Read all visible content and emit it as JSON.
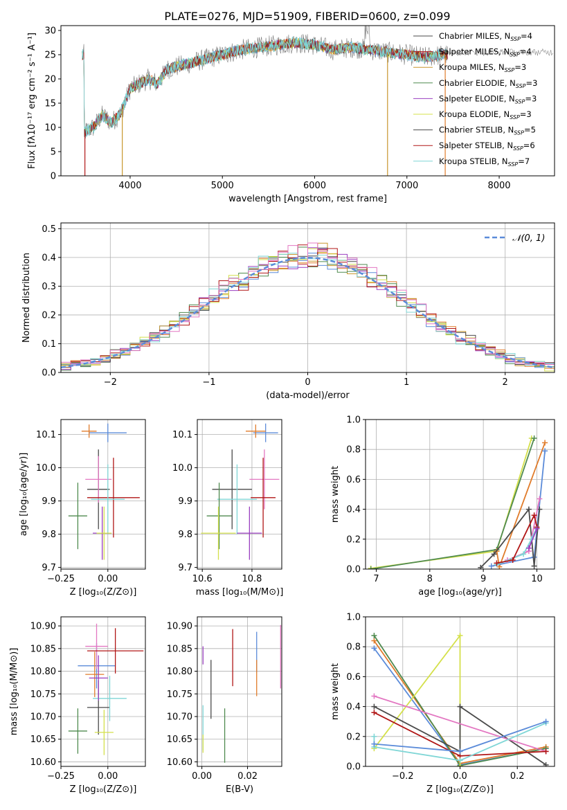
{
  "figure_title": "PLATE=0276, MJD=51909, FIBERID=0600, z=0.099",
  "colors": {
    "chabrier_miles": "#5b8bd9",
    "salpeter_miles": "#e07b2a",
    "kroupa_miles": "#c8962c",
    "chabrier_elodie": "#4f8a4f",
    "salpeter_elodie": "#9a3fc0",
    "kroupa_elodie": "#d4e04a",
    "chabrier_stelib": "#4a4a4a",
    "salpeter_stelib": "#b01515",
    "kroupa_stelib": "#7fd6d6",
    "pink": "#e377c2",
    "gauss": "#5b8bd9"
  },
  "chart_data": [
    {
      "id": "spectrum",
      "type": "line",
      "title": "PLATE=0276, MJD=51909, FIBERID=0600, z=0.099",
      "xlabel": "wavelength [Angstrom, rest frame]",
      "ylabel": "Flux [fλ10⁻¹⁷ erg cm⁻² s⁻¹ A⁻¹]",
      "xlim": [
        3250,
        8600
      ],
      "ylim": [
        0,
        31
      ],
      "xticks": [
        4000,
        5000,
        6000,
        7000,
        8000
      ],
      "yticks": [
        0,
        5,
        10,
        15,
        20,
        25,
        30
      ],
      "grid": false,
      "legend_position": "upper right",
      "legend": [
        {
          "label": "Chabrier MILES, N",
          "sub": "SSP",
          "val": "=4",
          "color": "#4a4a4a"
        },
        {
          "label": "Salpeter MILES, N",
          "sub": "SSP",
          "val": "=4",
          "color": "#b01515"
        },
        {
          "label": "Kroupa MILES, N",
          "sub": "SSP",
          "val": "=3",
          "color": "#c8962c"
        },
        {
          "label": "Chabrier ELODIE, N",
          "sub": "SSP",
          "val": "=3",
          "color": "#4f8a4f"
        },
        {
          "label": "Salpeter ELODIE, N",
          "sub": "SSP",
          "val": "=3",
          "color": "#9a3fc0"
        },
        {
          "label": "Kroupa ELODIE, N",
          "sub": "SSP",
          "val": "=3",
          "color": "#d4e04a"
        },
        {
          "label": "Chabrier STELIB, N",
          "sub": "SSP",
          "val": "=5",
          "color": "#4a4a4a"
        },
        {
          "label": "Salpeter STELIB, N",
          "sub": "SSP",
          "val": "=6",
          "color": "#b01515"
        },
        {
          "label": "Kroupa STELIB, N",
          "sub": "SSP",
          "val": "=7",
          "color": "#7fd6d6"
        }
      ],
      "continuum": {
        "x": [
          3500,
          3600,
          3700,
          3800,
          3900,
          4000,
          4100,
          4200,
          4300,
          4400,
          4600,
          4800,
          5000,
          5200,
          5400,
          5600,
          5800,
          6000,
          6200,
          6400,
          6600,
          6800,
          7000,
          7200,
          7400
        ],
        "y": [
          9,
          10,
          12.5,
          11,
          13,
          18,
          19,
          20,
          19,
          22,
          23,
          24,
          25,
          26,
          26.5,
          27,
          27.5,
          27,
          26,
          26.5,
          26,
          25.5,
          25,
          24.5,
          25
        ]
      },
      "spikes": [
        {
          "x": 3510,
          "color": "#b01515"
        },
        {
          "x": 3915,
          "color": "#c8962c"
        },
        {
          "x": 6790,
          "color": "#c8962c"
        },
        {
          "x": 7415,
          "color": "#e07b2a"
        }
      ]
    },
    {
      "id": "residuals",
      "type": "area",
      "xlabel": "(data-model)/error",
      "ylabel": "Normed distribution",
      "xlim": [
        -2.5,
        2.5
      ],
      "ylim": [
        0,
        0.52
      ],
      "xticks": [
        -2,
        -1,
        0,
        1,
        2
      ],
      "yticks": [
        0.0,
        0.1,
        0.2,
        0.3,
        0.4,
        0.5
      ],
      "grid": true,
      "legend": [
        "𝒩(0, 1)"
      ],
      "legend_position": "upper right",
      "bin_width": 0.1
    },
    {
      "id": "z_age",
      "type": "scatter",
      "xlabel": "Z [log₁₀(Z/Z⊙)]",
      "ylabel": "age  [log₁₀(age/yr)]",
      "xlim": [
        -0.25,
        0.2
      ],
      "ylim": [
        9.695,
        10.145
      ],
      "xticks": [
        -0.25,
        0.0
      ],
      "yticks": [
        9.7,
        9.8,
        9.9,
        10.0,
        10.1
      ],
      "grid": true,
      "points": [
        {
          "x": 0.0,
          "xerr": 0.1,
          "y": 10.105,
          "yerr": 0.028,
          "color": "#5b8bd9"
        },
        {
          "x": -0.1,
          "xerr": 0.04,
          "y": 10.11,
          "yerr": 0.02,
          "color": "#e07b2a"
        },
        {
          "x": -0.05,
          "xerr": 0.06,
          "y": 9.935,
          "yerr": 0.12,
          "color": "#4a4a4a"
        },
        {
          "x": -0.05,
          "xerr": 0.07,
          "y": 9.965,
          "yerr": 0.07,
          "color": "#e377c2"
        },
        {
          "x": 0.03,
          "xerr": 0.14,
          "y": 9.91,
          "yerr": 0.12,
          "color": "#b01515"
        },
        {
          "x": 0.0,
          "xerr": 0.09,
          "y": 9.905,
          "yerr": 0.105,
          "color": "#7fd6d6"
        },
        {
          "x": -0.16,
          "xerr": 0.05,
          "y": 9.855,
          "yerr": 0.1,
          "color": "#4f8a4f"
        },
        {
          "x": -0.03,
          "xerr": 0.05,
          "y": 9.803,
          "yerr": 0.08,
          "color": "#9a3fc0"
        },
        {
          "x": -0.02,
          "xerr": 0.04,
          "y": 9.803,
          "yerr": 0.08,
          "color": "#d4e04a"
        }
      ]
    },
    {
      "id": "mass_age",
      "type": "scatter",
      "xlabel": "mass [log₁₀(M/M⊙)]",
      "xlim": [
        10.58,
        10.92
      ],
      "ylim": [
        9.695,
        10.145
      ],
      "xticks": [
        10.6,
        10.8
      ],
      "yticks": [
        9.7,
        9.8,
        9.9,
        10.0,
        10.1
      ],
      "grid": true,
      "points": [
        {
          "x": 10.855,
          "xerr": 0.05,
          "y": 10.105,
          "yerr": 0.028,
          "color": "#5b8bd9"
        },
        {
          "x": 10.815,
          "xerr": 0.04,
          "y": 10.11,
          "yerr": 0.02,
          "color": "#e07b2a"
        },
        {
          "x": 10.72,
          "xerr": 0.08,
          "y": 9.935,
          "yerr": 0.12,
          "color": "#4a4a4a"
        },
        {
          "x": 10.85,
          "xerr": 0.06,
          "y": 9.965,
          "yerr": 0.09,
          "color": "#e377c2"
        },
        {
          "x": 10.845,
          "xerr": 0.05,
          "y": 9.91,
          "yerr": 0.12,
          "color": "#b01515"
        },
        {
          "x": 10.74,
          "xerr": 0.08,
          "y": 9.905,
          "yerr": 0.105,
          "color": "#7fd6d6"
        },
        {
          "x": 10.668,
          "xerr": 0.05,
          "y": 9.855,
          "yerr": 0.1,
          "color": "#4f8a4f"
        },
        {
          "x": 10.79,
          "xerr": 0.05,
          "y": 9.803,
          "yerr": 0.08,
          "color": "#9a3fc0"
        },
        {
          "x": 10.665,
          "xerr": 0.07,
          "y": 9.803,
          "yerr": 0.08,
          "color": "#d4e04a"
        }
      ]
    },
    {
      "id": "age_weight",
      "type": "line",
      "xlabel": "age  [log₁₀(age/yr)]",
      "ylabel": "mass weight",
      "xlim": [
        6.8,
        10.33
      ],
      "ylim": [
        0,
        1.0
      ],
      "xticks": [
        7,
        8,
        9,
        10
      ],
      "yticks": [
        0.0,
        0.2,
        0.4,
        0.6,
        0.8,
        1.0
      ],
      "grid": true,
      "series": [
        {
          "color": "#d4e04a",
          "x": [
            6.9,
            9.25,
            9.9
          ],
          "y": [
            0.005,
            0.12,
            0.875
          ]
        },
        {
          "color": "#4f8a4f",
          "x": [
            6.9,
            9.25,
            9.95
          ],
          "y": [
            0.0,
            0.13,
            0.875
          ]
        },
        {
          "color": "#e07b2a",
          "x": [
            9.25,
            9.3,
            10.15
          ],
          "y": [
            0.12,
            0.015,
            0.845
          ]
        },
        {
          "color": "#5b8bd9",
          "x": [
            9.15,
            9.95,
            10.15
          ],
          "y": [
            0.02,
            0.08,
            0.79
          ]
        },
        {
          "color": "#4a4a4a",
          "x": [
            8.95,
            9.2,
            9.85,
            9.95,
            10.05
          ],
          "y": [
            0.01,
            0.1,
            0.4,
            0.02,
            0.4
          ]
        },
        {
          "color": "#e377c2",
          "x": [
            9.45,
            9.85,
            10.05
          ],
          "y": [
            0.06,
            0.12,
            0.47
          ]
        },
        {
          "color": "#7fd6d6",
          "x": [
            9.25,
            9.75,
            9.9,
            10.0
          ],
          "y": [
            0.03,
            0.1,
            0.2,
            0.28
          ]
        },
        {
          "color": "#b01515",
          "x": [
            9.25,
            9.55,
            9.95,
            10.0
          ],
          "y": [
            0.04,
            0.06,
            0.36,
            0.28
          ]
        },
        {
          "color": "#9a3fc0",
          "x": [
            9.85,
            10.0
          ],
          "y": [
            0.14,
            0.27
          ]
        }
      ]
    },
    {
      "id": "z_mass",
      "type": "scatter",
      "xlabel": "Z [log₁₀(Z/Z⊙)]",
      "ylabel": "mass [log₁₀(M/M⊙)]",
      "xlim": [
        -0.25,
        0.2
      ],
      "ylim": [
        10.59,
        10.92
      ],
      "xticks": [
        -0.25,
        0.0
      ],
      "yticks": [
        10.6,
        10.65,
        10.7,
        10.75,
        10.8,
        10.85,
        10.9
      ],
      "grid": true,
      "points": [
        {
          "x": -0.06,
          "xerr": 0.1,
          "y": 10.812,
          "yerr": 0.05,
          "color": "#5b8bd9"
        },
        {
          "x": -0.07,
          "xerr": 0.05,
          "y": 10.793,
          "yerr": 0.05,
          "color": "#e07b2a"
        },
        {
          "x": -0.05,
          "xerr": 0.06,
          "y": 10.72,
          "yerr": 0.06,
          "color": "#4a4a4a"
        },
        {
          "x": -0.06,
          "xerr": 0.06,
          "y": 10.855,
          "yerr": 0.05,
          "color": "#e377c2"
        },
        {
          "x": 0.04,
          "xerr": 0.15,
          "y": 10.845,
          "yerr": 0.05,
          "color": "#b01515"
        },
        {
          "x": 0.01,
          "xerr": 0.09,
          "y": 10.74,
          "yerr": 0.05,
          "color": "#7fd6d6"
        },
        {
          "x": -0.16,
          "xerr": 0.05,
          "y": 10.668,
          "yerr": 0.05,
          "color": "#4f8a4f"
        },
        {
          "x": -0.05,
          "xerr": 0.05,
          "y": 10.785,
          "yerr": 0.05,
          "color": "#9a3fc0"
        },
        {
          "x": -0.02,
          "xerr": 0.05,
          "y": 10.665,
          "yerr": 0.05,
          "color": "#d4e04a"
        }
      ]
    },
    {
      "id": "ebv_mass",
      "type": "scatter",
      "xlabel": "E(B-V)",
      "xlim": [
        -0.002,
        0.035
      ],
      "ylim": [
        10.59,
        10.92
      ],
      "xticks": [
        0.0,
        0.02
      ],
      "yticks": [
        10.6,
        10.65,
        10.7,
        10.75,
        10.8,
        10.85,
        10.9
      ],
      "grid": true,
      "points": [
        {
          "x": 0.024,
          "y": 10.842,
          "yerr": 0.045,
          "color": "#5b8bd9"
        },
        {
          "x": 0.024,
          "y": 10.785,
          "yerr": 0.04,
          "color": "#e07b2a"
        },
        {
          "x": 0.004,
          "y": 10.76,
          "yerr": 0.065,
          "color": "#4a4a4a"
        },
        {
          "x": 0.0345,
          "y": 10.832,
          "yerr": 0.07,
          "color": "#e377c2"
        },
        {
          "x": 0.0135,
          "y": 10.83,
          "yerr": 0.063,
          "color": "#b01515"
        },
        {
          "x": 0.0005,
          "y": 10.675,
          "yerr": 0.05,
          "color": "#7fd6d6"
        },
        {
          "x": 0.01,
          "y": 10.658,
          "yerr": 0.06,
          "color": "#4f8a4f"
        },
        {
          "x": 0.0005,
          "y": 10.835,
          "yerr": 0.02,
          "color": "#9a3fc0"
        },
        {
          "x": 0.0005,
          "y": 10.64,
          "yerr": 0.02,
          "color": "#d4e04a"
        }
      ]
    },
    {
      "id": "z_weight",
      "type": "line",
      "xlabel": "Z [log₁₀(Z/Z⊙)]",
      "ylabel": "mass weight",
      "xlim": [
        -0.33,
        0.33
      ],
      "ylim": [
        0,
        1.0
      ],
      "xticks": [
        -0.2,
        0.0,
        0.2
      ],
      "yticks": [
        0.0,
        0.2,
        0.4,
        0.6,
        0.8,
        1.0
      ],
      "grid": true,
      "series": [
        {
          "color": "#5b8bd9",
          "x": [
            -0.3,
            0.0,
            0.3
          ],
          "y": [
            0.79,
            0.01,
            0.12
          ]
        },
        {
          "color": "#e07b2a",
          "x": [
            -0.3,
            0.0,
            0.3
          ],
          "y": [
            0.84,
            0.02,
            0.13
          ]
        },
        {
          "color": "#4f8a4f",
          "x": [
            -0.3,
            0.0,
            0.3
          ],
          "y": [
            0.875,
            0.005,
            0.12
          ]
        },
        {
          "color": "#d4e04a",
          "x": [
            -0.3,
            0.0,
            0.0
          ],
          "y": [
            0.12,
            0.875,
            0.0
          ]
        },
        {
          "color": "#4a4a4a",
          "x": [
            -0.3,
            0.0,
            0.0,
            0.3
          ],
          "y": [
            0.4,
            0.1,
            0.4,
            0.01
          ]
        },
        {
          "color": "#e377c2",
          "x": [
            -0.3,
            0.3
          ],
          "y": [
            0.47,
            0.1
          ]
        },
        {
          "color": "#b01515",
          "x": [
            -0.3,
            0.0,
            0.3
          ],
          "y": [
            0.36,
            0.07,
            0.1
          ]
        },
        {
          "color": "#7fd6d6",
          "x": [
            -0.3,
            -0.3,
            0.0,
            0.3
          ],
          "y": [
            0.2,
            0.13,
            0.04,
            0.29
          ]
        },
        {
          "color": "#5b8bd9",
          "x": [
            -0.3,
            0.0,
            0.3
          ],
          "y": [
            0.15,
            0.1,
            0.3
          ]
        }
      ]
    }
  ]
}
